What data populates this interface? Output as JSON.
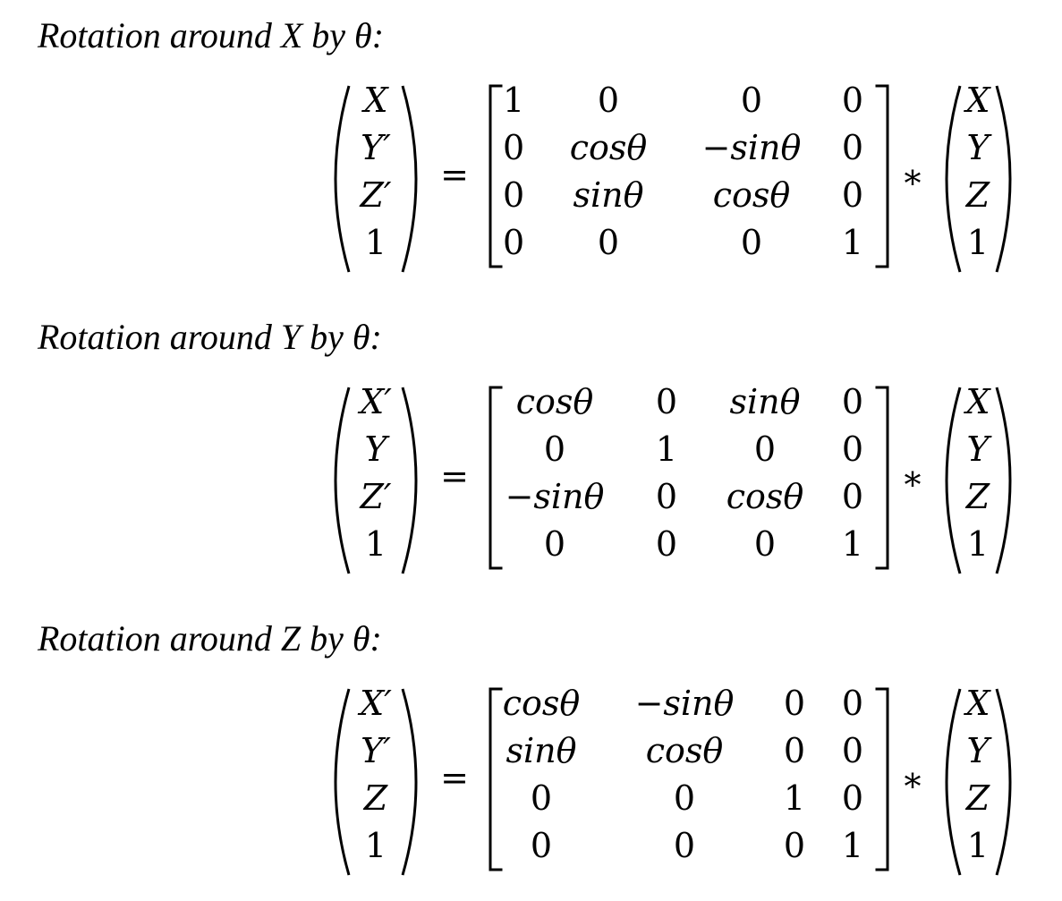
{
  "sections": [
    {
      "heading": "Rotation around X by θ:",
      "lhs": [
        "X",
        "Y′",
        "Z′",
        "1"
      ],
      "equals": "=",
      "matrix": [
        [
          "1",
          "0",
          "0",
          "0"
        ],
        [
          "0",
          "cosθ",
          "−sinθ",
          "0"
        ],
        [
          "0",
          "sinθ",
          "cosθ",
          "0"
        ],
        [
          "0",
          "0",
          "0",
          "1"
        ]
      ],
      "col_align": [
        "left",
        "center",
        "center",
        "right"
      ],
      "operator": "*",
      "rhs": [
        "X",
        "Y",
        "Z",
        "1"
      ]
    },
    {
      "heading": "Rotation around Y by θ:",
      "lhs": [
        "X′",
        "Y",
        "Z′",
        "1"
      ],
      "equals": "=",
      "matrix": [
        [
          "cosθ",
          "0",
          "sinθ",
          "0"
        ],
        [
          "0",
          "1",
          "0",
          "0"
        ],
        [
          "−sinθ",
          "0",
          "cosθ",
          "0"
        ],
        [
          "0",
          "0",
          "0",
          "1"
        ]
      ],
      "col_align": [
        "center",
        "center",
        "center",
        "right"
      ],
      "operator": "*",
      "rhs": [
        "X",
        "Y",
        "Z",
        "1"
      ]
    },
    {
      "heading": "Rotation around Z by θ:",
      "lhs": [
        "X′",
        "Y′",
        "Z",
        "1"
      ],
      "equals": "=",
      "matrix": [
        [
          "cosθ",
          "−sinθ",
          "0",
          "0"
        ],
        [
          "sinθ",
          "cosθ",
          "0",
          "0"
        ],
        [
          "0",
          "0",
          "1",
          "0"
        ],
        [
          "0",
          "0",
          "0",
          "1"
        ]
      ],
      "col_align": [
        "center",
        "center",
        "center",
        "right"
      ],
      "operator": "*",
      "rhs": [
        "X",
        "Y",
        "Z",
        "1"
      ]
    }
  ]
}
